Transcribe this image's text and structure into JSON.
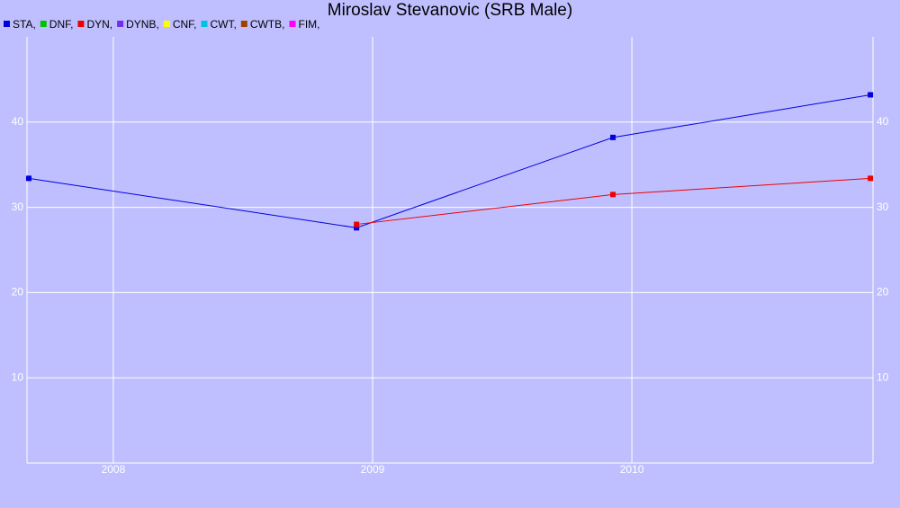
{
  "chart_data": {
    "type": "line",
    "title": "Miroslav Stevanovic (SRB Male)",
    "xlim": [
      2007.667,
      2010.93
    ],
    "xticks": [
      2008,
      2009,
      2010
    ],
    "ylim": [
      0,
      50
    ],
    "yticks": [
      10,
      20,
      30,
      40
    ],
    "grid": true,
    "series": [
      {
        "name": "STA,",
        "color": "#0000dd",
        "x": [
          2007.674,
          2008.938,
          2009.927,
          2010.92
        ],
        "values": [
          33.4,
          27.6,
          38.2,
          43.2
        ]
      },
      {
        "name": "DNF,",
        "color": "#00c000",
        "x": [],
        "values": []
      },
      {
        "name": "DYN,",
        "color": "#ee0000",
        "x": [
          2008.938,
          2009.927,
          2010.92
        ],
        "values": [
          28.0,
          31.5,
          33.4
        ]
      },
      {
        "name": "DYNB,",
        "color": "#7030f0",
        "x": [],
        "values": []
      },
      {
        "name": "CNF,",
        "color": "#ffff00",
        "x": [],
        "values": []
      },
      {
        "name": "CWT,",
        "color": "#00c0e0",
        "x": [],
        "values": []
      },
      {
        "name": "CWTB,",
        "color": "#a04000",
        "x": [],
        "values": []
      },
      {
        "name": "FIM,",
        "color": "#ff00ff",
        "x": [],
        "values": []
      }
    ]
  }
}
